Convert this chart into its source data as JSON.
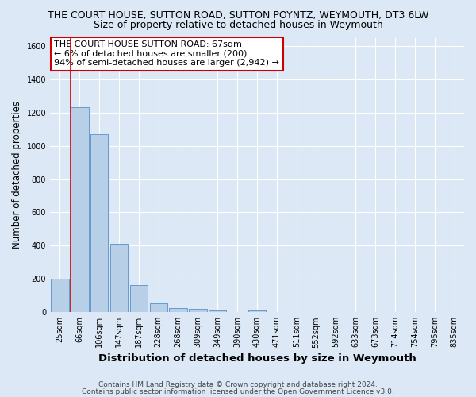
{
  "title": "THE COURT HOUSE, SUTTON ROAD, SUTTON POYNTZ, WEYMOUTH, DT3 6LW",
  "subtitle": "Size of property relative to detached houses in Weymouth",
  "xlabel": "Distribution of detached houses by size in Weymouth",
  "ylabel": "Number of detached properties",
  "categories": [
    "25sqm",
    "66sqm",
    "106sqm",
    "147sqm",
    "187sqm",
    "228sqm",
    "268sqm",
    "309sqm",
    "349sqm",
    "390sqm",
    "430sqm",
    "471sqm",
    "511sqm",
    "552sqm",
    "592sqm",
    "633sqm",
    "673sqm",
    "714sqm",
    "754sqm",
    "795sqm",
    "835sqm"
  ],
  "values": [
    200,
    1230,
    1070,
    410,
    165,
    52,
    25,
    18,
    12,
    0,
    12,
    0,
    0,
    0,
    0,
    0,
    0,
    0,
    0,
    0,
    0
  ],
  "bar_color": "#b8cfe8",
  "bar_edge_color": "#6699cc",
  "vline_color": "#cc0000",
  "annotation_text": "THE COURT HOUSE SUTTON ROAD: 67sqm\n← 6% of detached houses are smaller (200)\n94% of semi-detached houses are larger (2,942) →",
  "annotation_box_color": "white",
  "annotation_box_edge_color": "#cc0000",
  "ylim": [
    0,
    1650
  ],
  "yticks": [
    0,
    200,
    400,
    600,
    800,
    1000,
    1200,
    1400,
    1600
  ],
  "bg_color": "#dce8f5",
  "plot_bg_color": "#dce8f5",
  "footer1": "Contains HM Land Registry data © Crown copyright and database right 2024.",
  "footer2": "Contains public sector information licensed under the Open Government Licence v3.0.",
  "title_fontsize": 9,
  "subtitle_fontsize": 9,
  "xlabel_fontsize": 9.5,
  "ylabel_fontsize": 8.5,
  "tick_fontsize": 7,
  "annotation_fontsize": 8,
  "footer_fontsize": 6.5
}
